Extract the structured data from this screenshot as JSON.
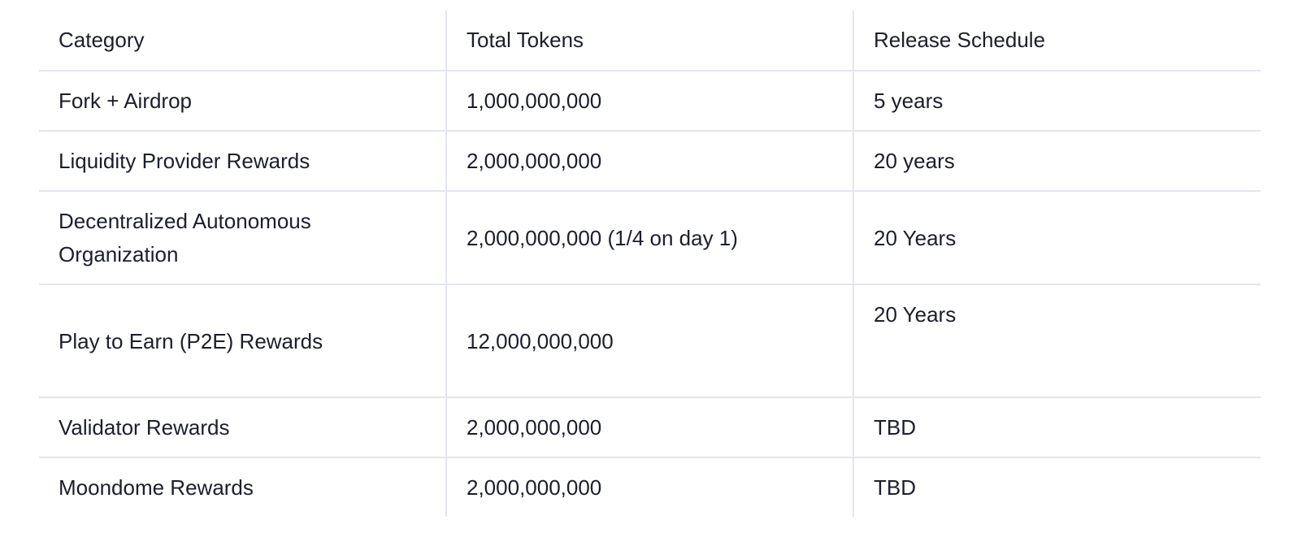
{
  "table": {
    "headers": [
      "Category",
      "Total Tokens",
      "Release Schedule"
    ],
    "rows": [
      {
        "category": "Fork + Airdrop",
        "total_tokens": "1,000,000,000",
        "release_schedule": "5 years"
      },
      {
        "category": "Liquidity Provider Rewards",
        "total_tokens": "2,000,000,000",
        "release_schedule": "20 years"
      },
      {
        "category": "Decentralized Autonomous Organization",
        "total_tokens": "2,000,000,000 (1/4 on day 1)",
        "release_schedule": "20 Years"
      },
      {
        "category": "Play to Earn (P2E) Rewards",
        "total_tokens": "12,000,000,000",
        "release_schedule": "20 Years"
      },
      {
        "category": "Validator Rewards",
        "total_tokens": "2,000,000,000",
        "release_schedule": "TBD"
      },
      {
        "category": "Moondome Rewards",
        "total_tokens": "2,000,000,000",
        "release_schedule": "TBD"
      }
    ]
  }
}
